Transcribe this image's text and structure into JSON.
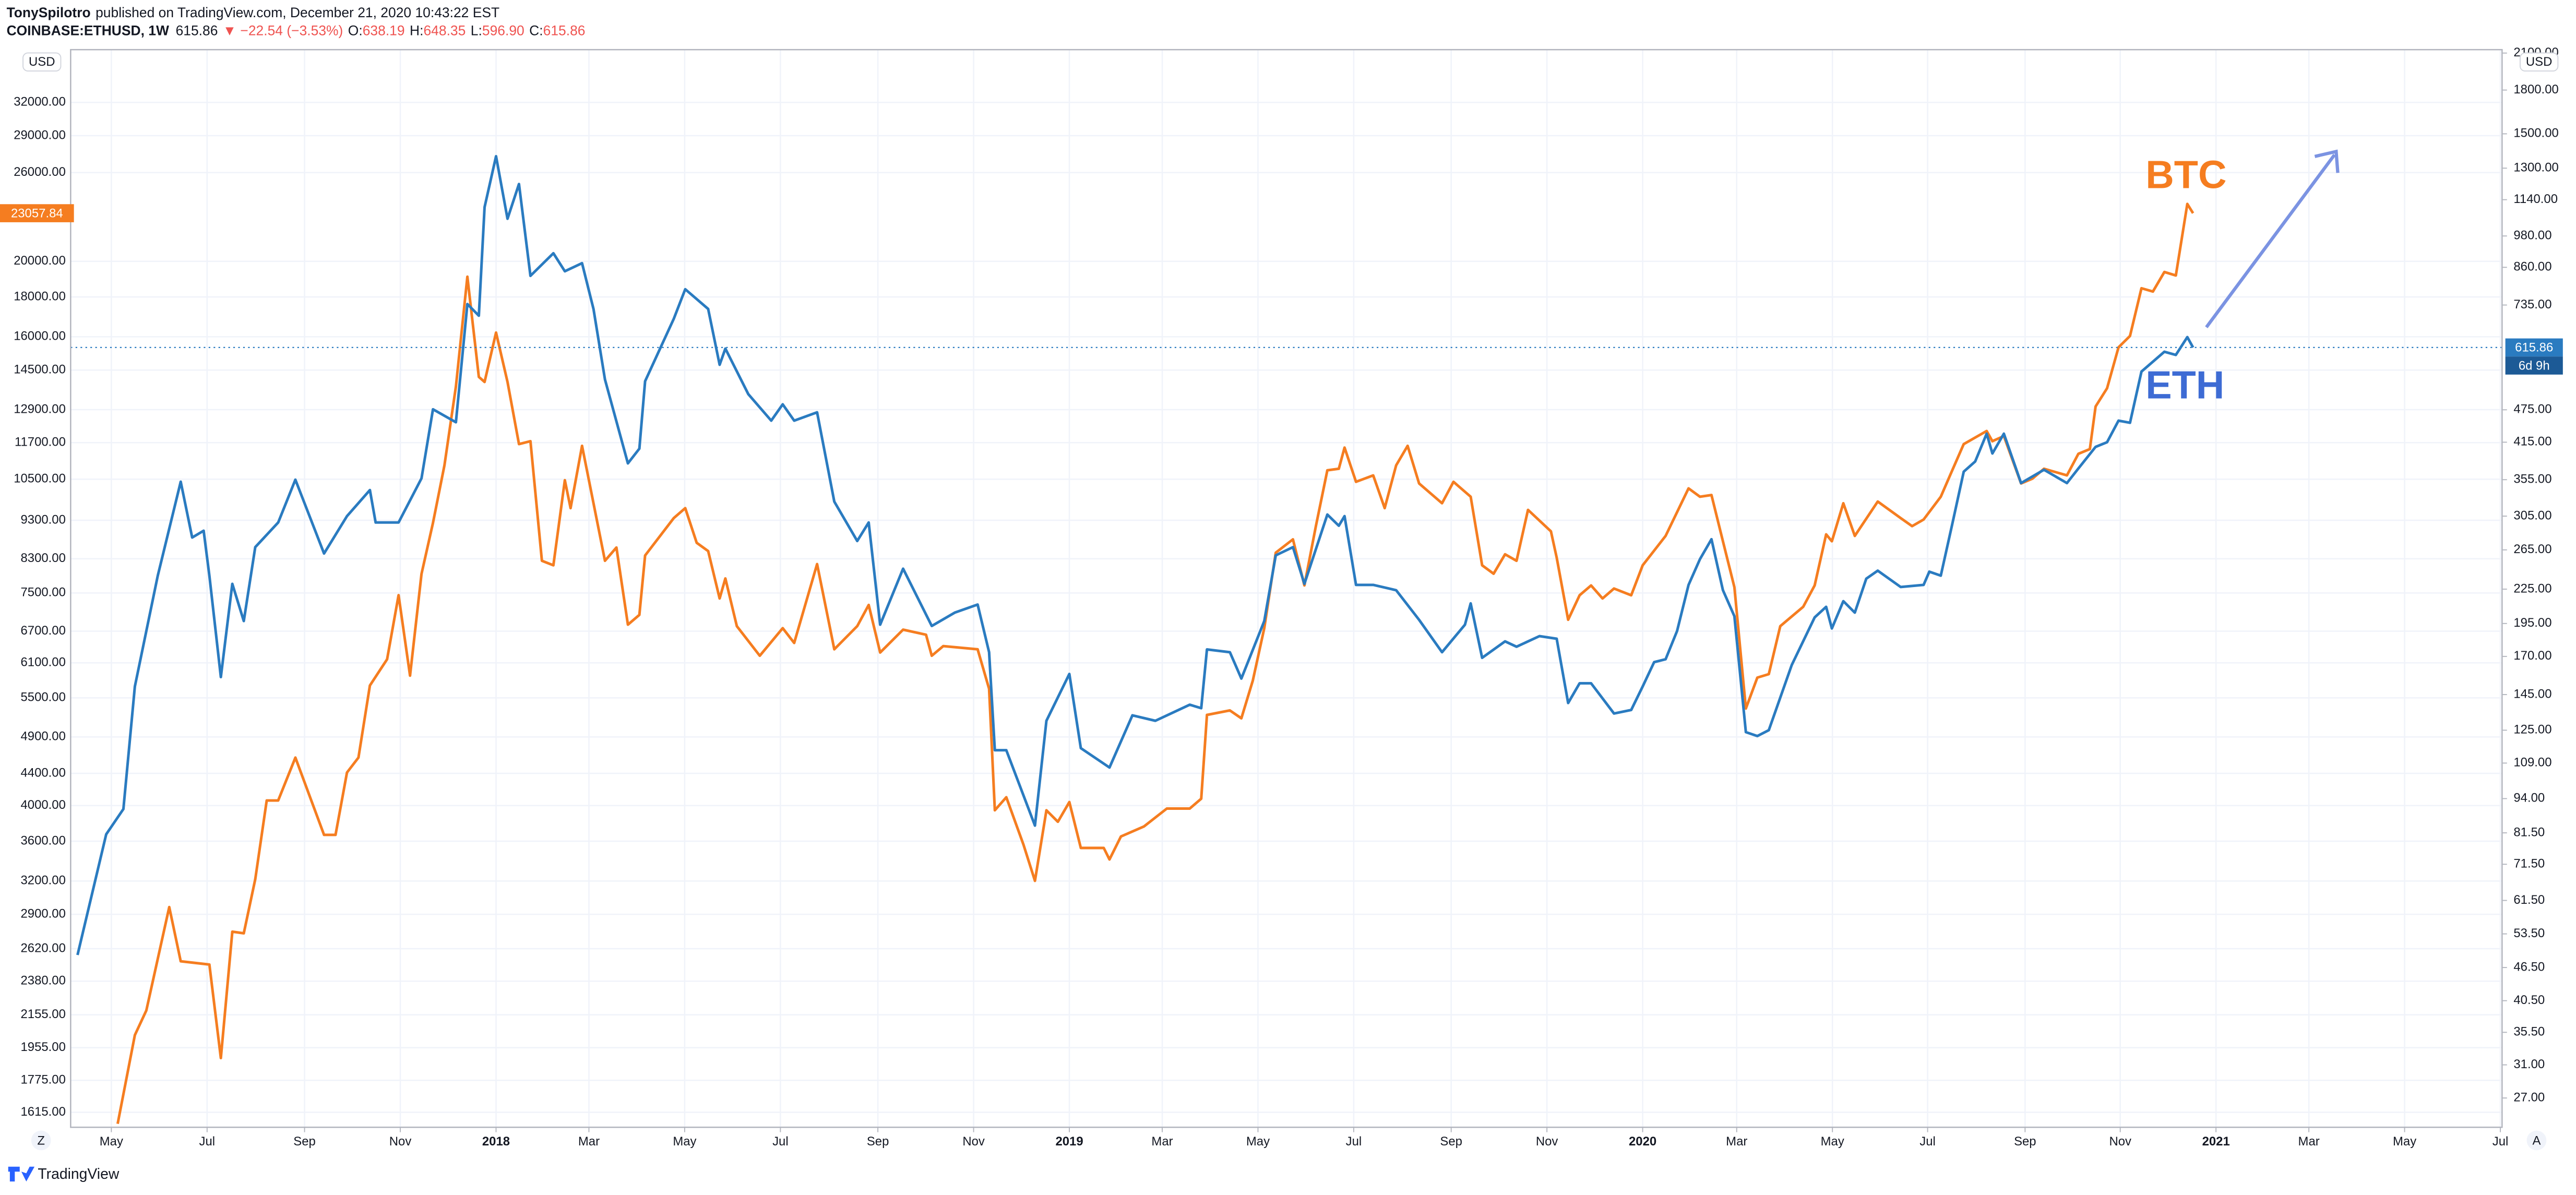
{
  "header": {
    "author": "TonySpilotro",
    "published": "published on TradingView.com, December 21, 2020 10:43:22 EST",
    "symbol": "COINBASE:ETHUSD, 1W",
    "change": "▼ −22.54 (−3.53%)",
    "ohlc": [
      {
        "label": "O:",
        "value": "638.19"
      },
      {
        "label": "H:",
        "value": "648.35"
      },
      {
        "label": "L:",
        "value": "596.90"
      },
      {
        "label": "C:",
        "value": "615.86"
      }
    ]
  },
  "controls": {
    "left": "Z",
    "right": "A",
    "currency": "USD"
  },
  "footer": {
    "brand": "TradingView"
  },
  "chart_data": {
    "type": "line",
    "log_scale": true,
    "grid": true,
    "countdown": "6d 9h",
    "xlim": [
      2017.258,
      2021.499
    ],
    "xticks": [
      {
        "value": 2017.329,
        "label": "May"
      },
      {
        "value": 2017.496,
        "label": "Jul"
      },
      {
        "value": 2017.666,
        "label": "Sep"
      },
      {
        "value": 2017.833,
        "label": "Nov"
      },
      2018,
      {
        "value": 2018.162,
        "label": "Mar"
      },
      {
        "value": 2018.329,
        "label": "May"
      },
      {
        "value": 2018.496,
        "label": "Jul"
      },
      {
        "value": 2018.666,
        "label": "Sep"
      },
      {
        "value": 2018.833,
        "label": "Nov"
      },
      2019,
      {
        "value": 2019.162,
        "label": "Mar"
      },
      {
        "value": 2019.329,
        "label": "May"
      },
      {
        "value": 2019.496,
        "label": "Jul"
      },
      {
        "value": 2019.666,
        "label": "Sep"
      },
      {
        "value": 2019.833,
        "label": "Nov"
      },
      2020,
      {
        "value": 2020.164,
        "label": "Mar"
      },
      {
        "value": 2020.331,
        "label": "May"
      },
      {
        "value": 2020.497,
        "label": "Jul"
      },
      {
        "value": 2020.667,
        "label": "Sep"
      },
      {
        "value": 2020.833,
        "label": "Nov"
      },
      2021,
      {
        "value": 2021.162,
        "label": "Mar"
      },
      {
        "value": 2021.329,
        "label": "May"
      },
      {
        "value": 2021.496,
        "label": "Jul"
      }
    ],
    "ylim": [
      1545,
      37400
    ],
    "yticks": [
      {
        "value": 1615,
        "label": "1615.00"
      },
      {
        "value": 1775,
        "label": "1775.00"
      },
      {
        "value": 1955,
        "label": "1955.00"
      },
      {
        "value": 2155,
        "label": "2155.00"
      },
      {
        "value": 2380,
        "label": "2380.00"
      },
      {
        "value": 2620,
        "label": "2620.00"
      },
      {
        "value": 2900,
        "label": "2900.00"
      },
      {
        "value": 3200,
        "label": "3200.00"
      },
      {
        "value": 3600,
        "label": "3600.00"
      },
      {
        "value": 4000,
        "label": "4000.00"
      },
      {
        "value": 4400,
        "label": "4400.00"
      },
      {
        "value": 4900,
        "label": "4900.00"
      },
      {
        "value": 5500,
        "label": "5500.00"
      },
      {
        "value": 6100,
        "label": "6100.00"
      },
      {
        "value": 6700,
        "label": "6700.00"
      },
      {
        "value": 7500,
        "label": "7500.00"
      },
      {
        "value": 8300,
        "label": "8300.00"
      },
      {
        "value": 9300,
        "label": "9300.00"
      },
      {
        "value": 10500,
        "label": "10500.00"
      },
      {
        "value": 11700,
        "label": "11700.00"
      },
      {
        "value": 12900,
        "label": "12900.00"
      },
      {
        "value": 14500,
        "label": "14500.00"
      },
      {
        "value": 16000,
        "label": "16000.00"
      },
      {
        "value": 18000,
        "label": "18000.00"
      },
      {
        "value": 20000,
        "label": "20000.00"
      },
      {
        "value": 26000,
        "label": "26000.00"
      },
      {
        "value": 29000,
        "label": "29000.00"
      },
      {
        "value": 32000,
        "label": "32000.00"
      }
    ],
    "y2lim": [
      23.9,
      2130
    ],
    "y2ticks": [
      {
        "value": 27,
        "label": "27.00"
      },
      {
        "value": 31,
        "label": "31.00"
      },
      {
        "value": 35.5,
        "label": "35.50"
      },
      {
        "value": 40.5,
        "label": "40.50"
      },
      {
        "value": 46.5,
        "label": "46.50"
      },
      {
        "value": 53.5,
        "label": "53.50"
      },
      {
        "value": 61.5,
        "label": "61.50"
      },
      {
        "value": 71.5,
        "label": "71.50"
      },
      {
        "value": 81.5,
        "label": "81.50"
      },
      {
        "value": 94,
        "label": "94.00"
      },
      {
        "value": 109,
        "label": "109.00"
      },
      {
        "value": 125,
        "label": "125.00"
      },
      {
        "value": 145,
        "label": "145.00"
      },
      {
        "value": 170,
        "label": "170.00"
      },
      {
        "value": 195,
        "label": "195.00"
      },
      {
        "value": 225,
        "label": "225.00"
      },
      {
        "value": 265,
        "label": "265.00"
      },
      {
        "value": 305,
        "label": "305.00"
      },
      {
        "value": 355,
        "label": "355.00"
      },
      {
        "value": 415,
        "label": "415.00"
      },
      {
        "value": 475,
        "label": "475.00"
      },
      {
        "value": 735,
        "label": "735.00"
      },
      {
        "value": 860,
        "label": "860.00"
      },
      {
        "value": 980,
        "label": "980.00"
      },
      {
        "value": 1140,
        "label": "1140.00"
      },
      {
        "value": 1300,
        "label": "1300.00"
      },
      {
        "value": 1500,
        "label": "1500.00"
      },
      {
        "value": 1800,
        "label": "1800.00"
      },
      {
        "value": 2100,
        "label": "2100.00"
      }
    ],
    "series": [
      {
        "name": "BTC",
        "color": "#f57d20",
        "x": [
          2017.34,
          2017.37,
          2017.39,
          2017.43,
          2017.45,
          2017.5,
          2017.52,
          2017.54,
          2017.56,
          2017.58,
          2017.6,
          2017.62,
          2017.65,
          2017.7,
          2017.72,
          2017.74,
          2017.76,
          2017.78,
          2017.81,
          2017.83,
          2017.85,
          2017.87,
          2017.89,
          2017.91,
          2017.93,
          2017.95,
          2017.97,
          2017.98,
          2018.0,
          2018.02,
          2018.04,
          2018.06,
          2018.08,
          2018.1,
          2018.12,
          2018.13,
          2018.15,
          2018.17,
          2018.19,
          2018.21,
          2018.23,
          2018.25,
          2018.26,
          2018.31,
          2018.33,
          2018.35,
          2018.37,
          2018.39,
          2018.4,
          2018.42,
          2018.46,
          2018.5,
          2018.52,
          2018.56,
          2018.59,
          2018.63,
          2018.65,
          2018.67,
          2018.71,
          2018.75,
          2018.76,
          2018.78,
          2018.84,
          2018.86,
          2018.87,
          2018.89,
          2018.92,
          2018.94,
          2018.96,
          2018.98,
          2019.0,
          2019.02,
          2019.06,
          2019.07,
          2019.09,
          2019.13,
          2019.17,
          2019.21,
          2019.23,
          2019.24,
          2019.28,
          2019.3,
          2019.32,
          2019.34,
          2019.36,
          2019.39,
          2019.41,
          2019.43,
          2019.45,
          2019.47,
          2019.48,
          2019.5,
          2019.53,
          2019.55,
          2019.57,
          2019.59,
          2019.61,
          2019.65,
          2019.67,
          2019.7,
          2019.72,
          2019.74,
          2019.76,
          2019.78,
          2019.8,
          2019.84,
          2019.85,
          2019.87,
          2019.89,
          2019.91,
          2019.93,
          2019.95,
          2019.98,
          2020.0,
          2020.04,
          2020.08,
          2020.1,
          2020.12,
          2020.14,
          2020.16,
          2020.18,
          2020.2,
          2020.22,
          2020.24,
          2020.28,
          2020.3,
          2020.32,
          2020.33,
          2020.35,
          2020.37,
          2020.41,
          2020.45,
          2020.47,
          2020.49,
          2020.52,
          2020.54,
          2020.56,
          2020.6,
          2020.61,
          2020.63,
          2020.66,
          2020.68,
          2020.7,
          2020.74,
          2020.76,
          2020.78,
          2020.79,
          2020.81,
          2020.83,
          2020.85,
          2020.87,
          2020.89,
          2020.91,
          2020.93,
          2020.95,
          2020.96
        ],
        "values": [
          1561,
          2029,
          2182,
          2963,
          2524,
          2500,
          1896,
          2755,
          2742,
          3217,
          4061,
          4061,
          4610,
          3668,
          3668,
          4411,
          4610,
          5706,
          6166,
          7452,
          5874,
          7936,
          9228,
          10940,
          13810,
          19110,
          14210,
          14000,
          16200,
          14000,
          11650,
          11750,
          8250,
          8140,
          10470,
          9640,
          11590,
          9780,
          8250,
          8580,
          6830,
          7030,
          8380,
          9360,
          9640,
          8700,
          8490,
          7380,
          7830,
          6800,
          6230,
          6760,
          6470,
          8170,
          6350,
          6800,
          7240,
          6290,
          6730,
          6630,
          6230,
          6410,
          6350,
          5650,
          3945,
          4100,
          3563,
          3202,
          3945,
          3813,
          4042,
          3529,
          3529,
          3411,
          3651,
          3760,
          3965,
          3965,
          4082,
          5230,
          5300,
          5178,
          5790,
          6760,
          8450,
          8790,
          7670,
          9140,
          10780,
          10830,
          11530,
          10420,
          10620,
          9640,
          10940,
          11590,
          10370,
          9780,
          10420,
          9970,
          8140,
          7940,
          8410,
          8250,
          9590,
          9000,
          8330,
          6930,
          7450,
          7670,
          7380,
          7600,
          7450,
          8140,
          8880,
          10220,
          9970,
          10020,
          8740,
          7630,
          5330,
          5840,
          5900,
          6800,
          7200,
          7670,
          8920,
          8740,
          9780,
          8880,
          9830,
          9360,
          9140,
          9320,
          9970,
          10780,
          11650,
          12110,
          11750,
          11930,
          10370,
          10520,
          10830,
          10620,
          11320,
          11480,
          13020,
          13740,
          15510,
          16040,
          18470,
          18290,
          19380,
          19180,
          23700,
          23057.84
        ]
      },
      {
        "name": "ETH",
        "color": "#2a7bc0",
        "axis": "y2",
        "x": [
          2017.27,
          2017.32,
          2017.35,
          2017.37,
          2017.41,
          2017.45,
          2017.47,
          2017.49,
          2017.5,
          2017.52,
          2017.54,
          2017.56,
          2017.58,
          2017.62,
          2017.65,
          2017.7,
          2017.74,
          2017.78,
          2017.79,
          2017.83,
          2017.87,
          2017.89,
          2017.93,
          2017.95,
          2017.97,
          2017.98,
          2018.0,
          2018.02,
          2018.04,
          2018.06,
          2018.1,
          2018.12,
          2018.15,
          2018.17,
          2018.19,
          2018.23,
          2018.25,
          2018.26,
          2018.31,
          2018.33,
          2018.37,
          2018.39,
          2018.4,
          2018.44,
          2018.48,
          2018.5,
          2018.52,
          2018.56,
          2018.59,
          2018.63,
          2018.65,
          2018.67,
          2018.71,
          2018.76,
          2018.8,
          2018.84,
          2018.86,
          2018.87,
          2018.89,
          2018.94,
          2018.96,
          2019.0,
          2019.02,
          2019.07,
          2019.11,
          2019.15,
          2019.21,
          2019.23,
          2019.24,
          2019.28,
          2019.3,
          2019.34,
          2019.36,
          2019.39,
          2019.41,
          2019.45,
          2019.47,
          2019.48,
          2019.5,
          2019.53,
          2019.57,
          2019.61,
          2019.65,
          2019.69,
          2019.7,
          2019.72,
          2019.76,
          2019.78,
          2019.82,
          2019.85,
          2019.87,
          2019.89,
          2019.91,
          2019.95,
          2019.98,
          2020.0,
          2020.02,
          2020.04,
          2020.06,
          2020.08,
          2020.1,
          2020.12,
          2020.14,
          2020.16,
          2020.18,
          2020.2,
          2020.22,
          2020.26,
          2020.3,
          2020.32,
          2020.33,
          2020.35,
          2020.37,
          2020.39,
          2020.41,
          2020.45,
          2020.49,
          2020.5,
          2020.52,
          2020.54,
          2020.56,
          2020.58,
          2020.6,
          2020.61,
          2020.63,
          2020.66,
          2020.7,
          2020.74,
          2020.76,
          2020.79,
          2020.81,
          2020.83,
          2020.85,
          2020.87,
          2020.91,
          2020.93,
          2020.95,
          2020.96
        ],
        "values": [
          49,
          81,
          90,
          150,
          238,
          352,
          279,
          287,
          238,
          156,
          230,
          197,
          268,
          297,
          355,
          261,
          305,
          340,
          297,
          297,
          357,
          476,
          451,
          738,
          703,
          1105,
          1366,
          1053,
          1217,
          830,
          912,
          846,
          875,
          723,
          539,
          380,
          404,
          535,
          694,
          785,
          723,
          573,
          613,
          507,
          454,
          486,
          454,
          470,
          324,
          275,
          297,
          194,
          245,
          193,
          204,
          211,
          173,
          115,
          115,
          84,
          130,
          158,
          116,
          107,
          133,
          130,
          139,
          137,
          175,
          173,
          155,
          197,
          259,
          268,
          230,
          307,
          293,
          305,
          229,
          229,
          224,
          198,
          173,
          194,
          212,
          169,
          181,
          177,
          185,
          183,
          140,
          152,
          152,
          134,
          136,
          150,
          166,
          168,
          189,
          229,
          255,
          277,
          224,
          201,
          124,
          122,
          125,
          164,
          200,
          209,
          191,
          214,
          204,
          235,
          243,
          227,
          229,
          242,
          238,
          295,
          367,
          383,
          430,
          396,
          430,
          350,
          370,
          350,
          372,
          407,
          415,
          454,
          450,
          557,
          605,
          597,
          643,
          615.86
        ]
      }
    ]
  }
}
